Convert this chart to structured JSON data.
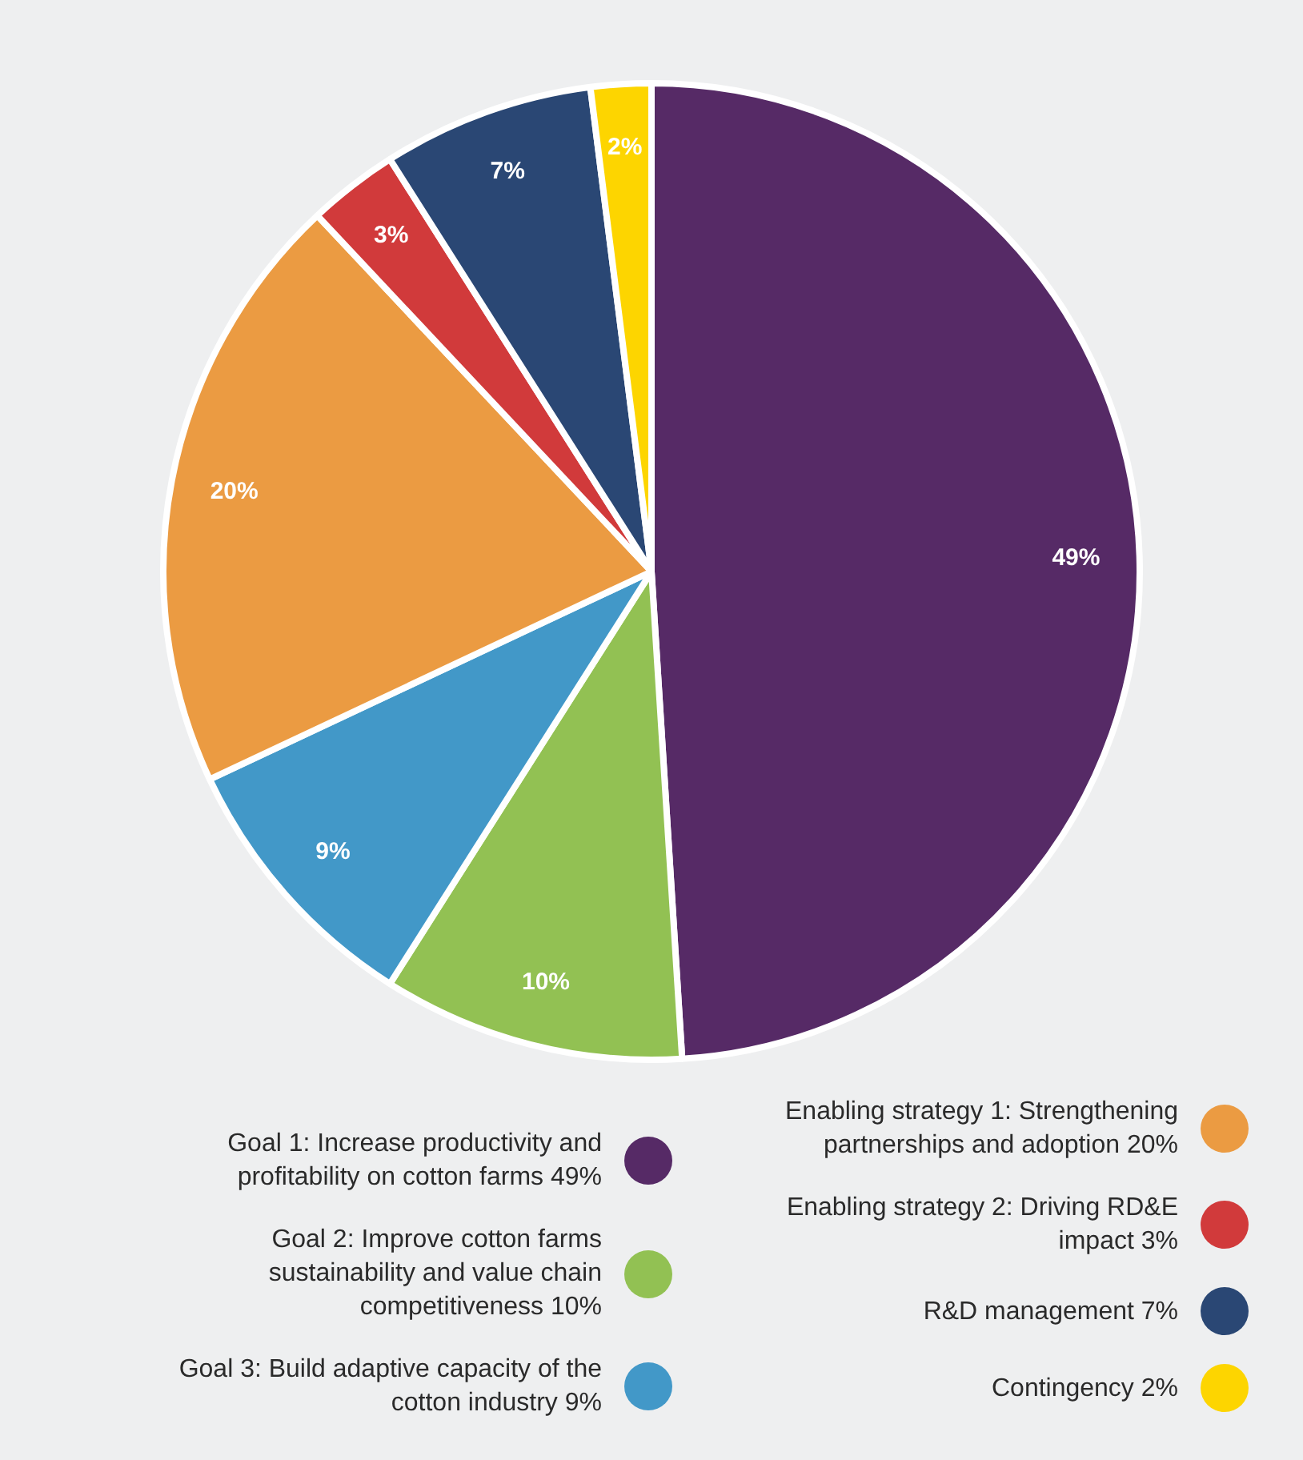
{
  "chart_data": {
    "type": "pie",
    "categories": [
      "Goal 1: Increase productivity and profitability on cotton farms 49%",
      "Goal 2: Improve cotton farms sustainability and value chain competitiveness 10%",
      "Goal 3: Build adaptive capacity of the cotton industry 9%",
      "Enabling strategy 1: Strengthening partnerships and adoption 20%",
      "Enabling strategy 2: Driving RD&E impact 3%",
      "R&D management 7%",
      "Contingency 2%"
    ],
    "values": [
      49,
      10,
      9,
      20,
      3,
      7,
      2
    ],
    "colors": [
      "#562a66",
      "#92c153",
      "#4298c8",
      "#eb9b42",
      "#d13a3b",
      "#2a4774",
      "#fdd500"
    ],
    "value_labels": [
      "49%",
      "10%",
      "9%",
      "20%",
      "3%",
      "7%",
      "2%"
    ],
    "legend": "bottom"
  }
}
